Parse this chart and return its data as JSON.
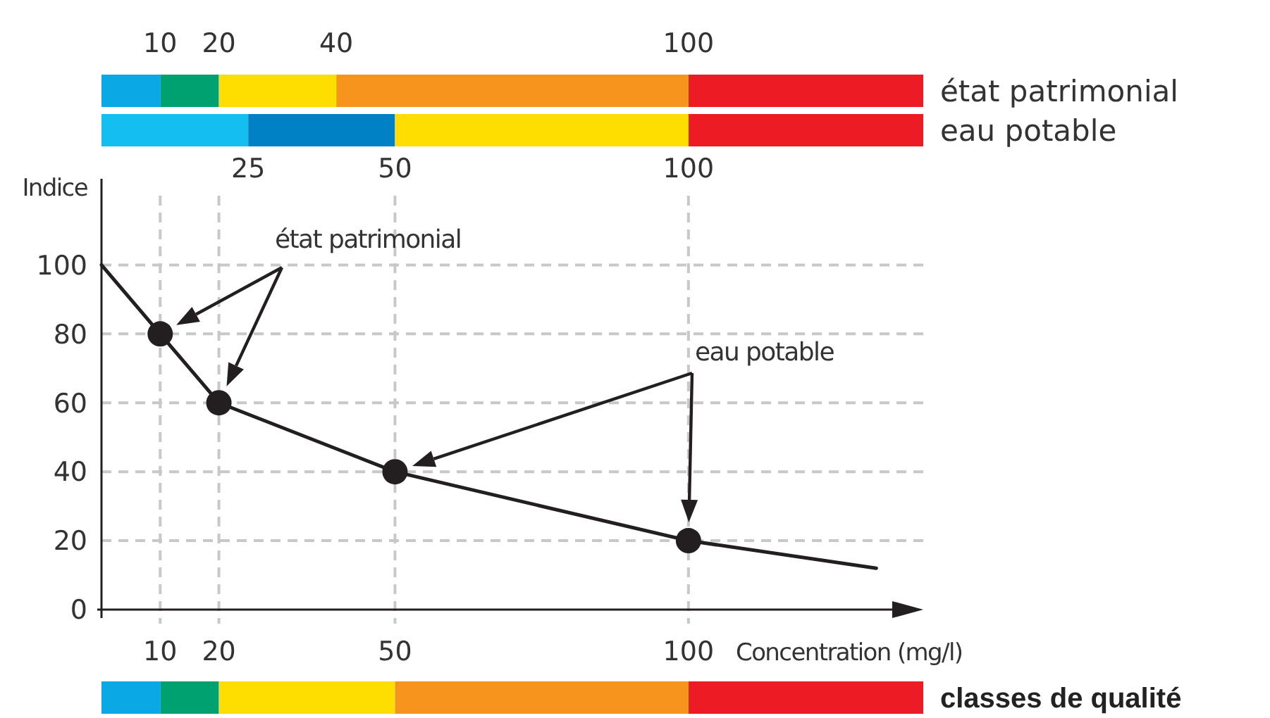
{
  "chart_data": [
    {
      "type": "bar",
      "orientation": "horizontal",
      "stacked": true,
      "categories": [
        "état patrimonial",
        "eau potable"
      ],
      "xlim": [
        0,
        140
      ],
      "xticks": [
        25,
        50,
        100
      ],
      "x2lim": [
        0,
        140
      ],
      "x2ticks": [
        10,
        20,
        40,
        100
      ],
      "series": [
        {
          "colors": [
            "#0aa9e6",
            "#14bef0"
          ],
          "values": [
            10,
            25
          ]
        },
        {
          "colors": [
            "#00a170",
            "#0081c6"
          ],
          "values": [
            10,
            25
          ]
        },
        {
          "colors": [
            "#fedd00",
            "#fedd00"
          ],
          "values": [
            20,
            50
          ]
        },
        {
          "colors": [
            "#f7941d",
            "#ed1c24"
          ],
          "values": [
            60,
            40
          ]
        },
        {
          "colors": [
            "#ed1c24",
            "#ed1c24"
          ],
          "values": [
            40,
            null
          ]
        }
      ]
    },
    {
      "type": "line",
      "xlabel": "Concentration (mg/l)",
      "ylabel": "Indice",
      "xlim": [
        0,
        140
      ],
      "xticks": [
        10,
        20,
        50,
        100
      ],
      "ylim": [
        0,
        125
      ],
      "yticks": [
        0,
        20,
        40,
        60,
        80,
        100
      ],
      "grid": true,
      "annotations": [
        "état patrimonial",
        "eau potable"
      ],
      "series": [
        {
          "type": "line",
          "color": "#231f20",
          "marker": "none",
          "x": [
            0,
            10,
            20,
            50,
            100,
            132
          ],
          "values": [
            100,
            80,
            60,
            40,
            20,
            12
          ]
        },
        {
          "type": "scatter",
          "color": "#231f20",
          "marker": "circle",
          "x": [
            10,
            20,
            50,
            100
          ],
          "values": [
            80,
            60,
            40,
            20
          ]
        }
      ]
    },
    {
      "type": "bar",
      "orientation": "horizontal",
      "stacked": true,
      "categories": [
        "classes de qualité"
      ],
      "xlim": [
        0,
        140
      ],
      "series": [
        {
          "color": "#0aa9e6",
          "values": [
            10
          ]
        },
        {
          "color": "#00a170",
          "values": [
            10
          ]
        },
        {
          "color": "#fedd00",
          "values": [
            30
          ]
        },
        {
          "color": "#f7941d",
          "values": [
            50
          ]
        },
        {
          "color": "#ed1c24",
          "values": [
            40
          ]
        }
      ]
    }
  ]
}
